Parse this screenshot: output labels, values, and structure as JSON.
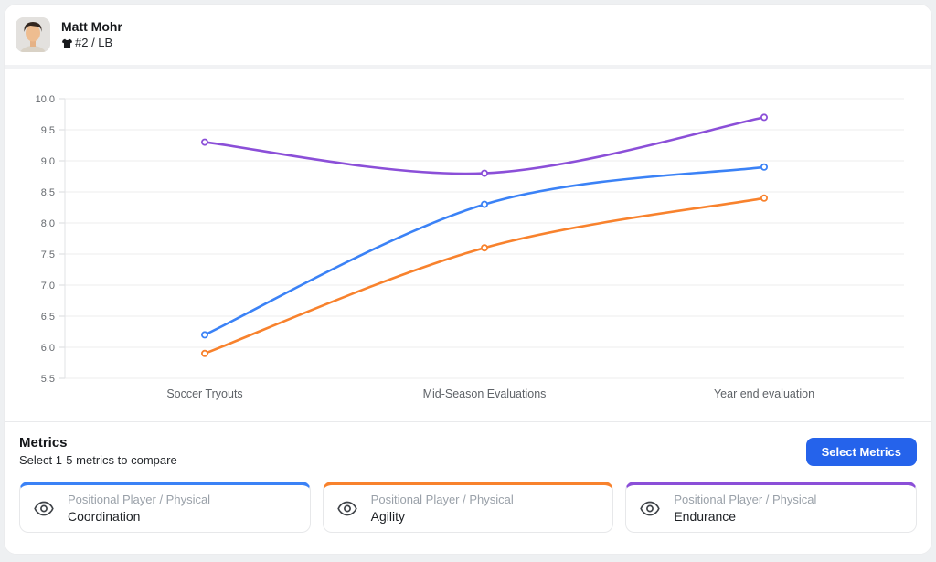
{
  "header": {
    "player_name": "Matt Mohr",
    "jersey_info": "#2 / LB"
  },
  "chart_data": {
    "type": "line",
    "categories": [
      "Soccer Tryouts",
      "Mid-Season Evaluations",
      "Year end evaluation"
    ],
    "series": [
      {
        "name": "Coordination",
        "color": "#3b82f6",
        "values": [
          6.2,
          8.3,
          8.9
        ]
      },
      {
        "name": "Agility",
        "color": "#f8822d",
        "values": [
          5.9,
          7.6,
          8.4
        ]
      },
      {
        "name": "Endurance",
        "color": "#8b4fd8",
        "values": [
          9.3,
          8.8,
          9.7
        ]
      }
    ],
    "ylim": [
      5.5,
      10.0
    ],
    "ytick_step": 0.5,
    "grid": true,
    "legend": "none",
    "title": "",
    "xlabel": "",
    "ylabel": ""
  },
  "metrics": {
    "title": "Metrics",
    "subtitle": "Select 1-5 metrics to compare",
    "select_button": "Select Metrics",
    "button_color": "#2563eb",
    "cards": [
      {
        "category": "Positional Player / Physical",
        "name": "Coordination",
        "color": "#3b82f6"
      },
      {
        "category": "Positional Player / Physical",
        "name": "Agility",
        "color": "#f8822d"
      },
      {
        "category": "Positional Player / Physical",
        "name": "Endurance",
        "color": "#8b4fd8"
      }
    ]
  }
}
